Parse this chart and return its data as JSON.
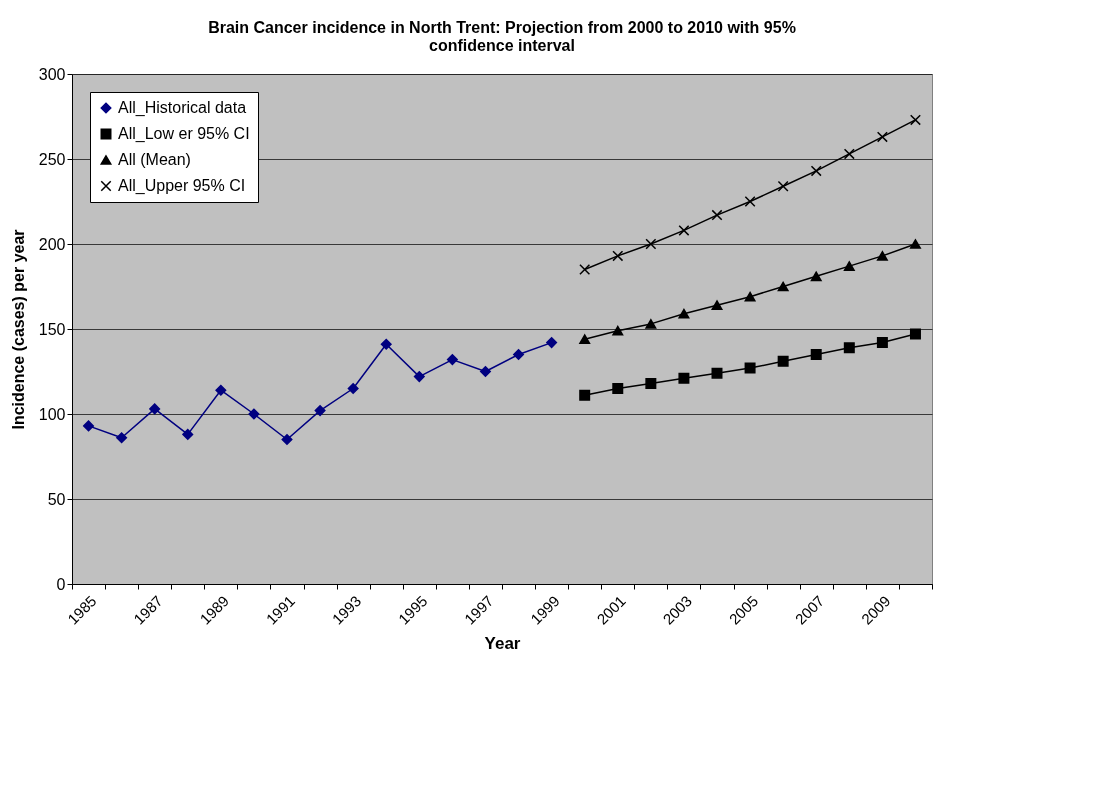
{
  "chart_data": {
    "type": "line",
    "title": "Brain Cancer incidence in North Trent: Projection from 2000 to 2010 with 95% confidence interval",
    "xlabel": "Year",
    "ylabel": "Incidence (cases) per year",
    "categories": [
      "1985",
      null,
      "1987",
      null,
      "1989",
      null,
      "1991",
      null,
      "1993",
      null,
      "1995",
      null,
      "1997",
      null,
      "1999",
      null,
      "2001",
      null,
      "2003",
      null,
      "2005",
      null,
      "2007",
      null,
      "2009",
      null
    ],
    "series": [
      {
        "name": "All_Historical data",
        "color": "#000080",
        "marker": "diamond",
        "values": [
          93,
          86,
          103,
          88,
          114,
          100,
          85,
          102,
          115,
          141,
          122,
          132,
          125,
          135,
          142,
          null,
          null,
          null,
          null,
          null,
          null,
          null,
          null,
          null,
          null,
          null
        ]
      },
      {
        "name": "All_Low er 95% CI",
        "color": "#000000",
        "marker": "square",
        "values": [
          null,
          null,
          null,
          null,
          null,
          null,
          null,
          null,
          null,
          null,
          null,
          null,
          null,
          null,
          null,
          111,
          115,
          118,
          121,
          124,
          127,
          131,
          135,
          139,
          142,
          147
        ]
      },
      {
        "name": "All (Mean)",
        "color": "#000000",
        "marker": "triangle",
        "values": [
          null,
          null,
          null,
          null,
          null,
          null,
          null,
          null,
          null,
          null,
          null,
          null,
          null,
          null,
          null,
          144,
          149,
          153,
          159,
          164,
          169,
          175,
          181,
          187,
          193,
          200
        ]
      },
      {
        "name": "All_Upper 95% CI",
        "color": "#000000",
        "marker": "cross",
        "values": [
          null,
          null,
          null,
          null,
          null,
          null,
          null,
          null,
          null,
          null,
          null,
          null,
          null,
          null,
          null,
          185,
          193,
          200,
          208,
          217,
          225,
          234,
          243,
          253,
          263,
          273
        ]
      }
    ],
    "ylim": [
      0,
      300
    ],
    "yticks": [
      0,
      50,
      100,
      150,
      200,
      250,
      300
    ],
    "grid": "y",
    "legend": "top left",
    "line_style": "solid"
  }
}
